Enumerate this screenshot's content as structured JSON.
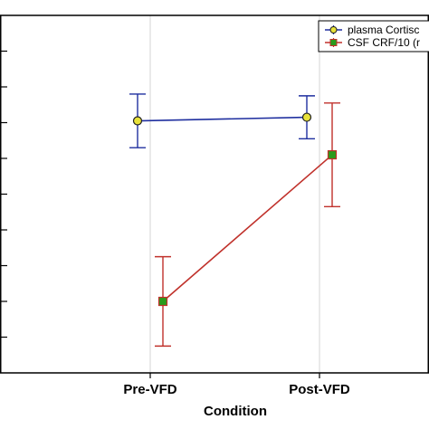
{
  "chart_data": {
    "type": "line",
    "xlabel": "Condition",
    "ylabel": "",
    "categories": [
      "Pre-VFD",
      "Post-VFD"
    ],
    "ylim": [
      0,
      100
    ],
    "grid": true,
    "legend_position": "top-right",
    "series": [
      {
        "name": "plasma Cortisc",
        "color": "#1f2f9f",
        "marker": "circle",
        "marker_fill": "#e8e23a",
        "values": [
          70.5,
          71.5
        ],
        "error_low": [
          63.0,
          65.5
        ],
        "error_high": [
          78.0,
          77.5
        ]
      },
      {
        "name": "CSF CRF/10 (r",
        "color": "#c0312b",
        "marker": "square",
        "marker_fill": "#2a9b1c",
        "values": [
          20.0,
          61.0
        ],
        "error_low": [
          7.5,
          46.5
        ],
        "error_high": [
          32.5,
          75.5
        ]
      }
    ]
  }
}
